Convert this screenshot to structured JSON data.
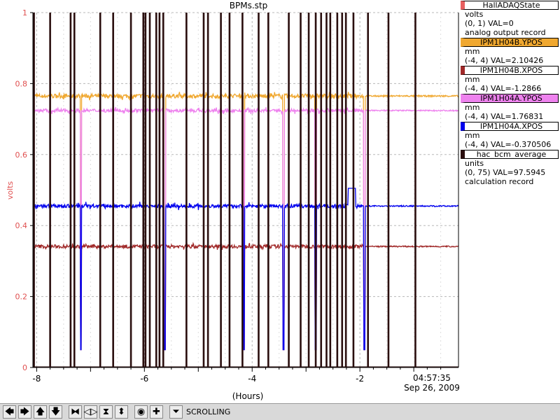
{
  "chart_data": {
    "type": "line",
    "title": "BPMs.stp",
    "xlabel": "(Hours)",
    "ylabel": "volts",
    "xlim": [
      -8.07,
      -0.17
    ],
    "ylim": [
      0,
      1
    ],
    "x_ticks": [
      -8,
      -6,
      -4,
      -2
    ],
    "x_tick_labels": [
      "-8",
      "-6",
      "-4",
      "-2"
    ],
    "y_ticks": [
      0,
      0.2,
      0.4,
      0.6,
      0.8,
      1
    ],
    "y_tick_labels": [
      "0",
      "0.2",
      "0.4",
      "0.6",
      "0.8",
      "1"
    ],
    "end_time": "04:57:35",
    "end_date": "Sep 26, 2009",
    "grid": true,
    "legend_position": "right",
    "series": [
      {
        "name": "HallADAQState",
        "color": "#e86060",
        "level": 0.0,
        "noise": 0.0
      },
      {
        "name": "IPM1H04B.YPOS",
        "color": "#f0a830",
        "level": 0.765,
        "noise": 0.006,
        "spike": 0.012
      },
      {
        "name": "IPM1H04B.XPOS",
        "color": "#a02828",
        "level": 0.341,
        "noise": 0.005,
        "spike": 0.01
      },
      {
        "name": "IPM1H04A.YPOS",
        "color": "#ee82ee",
        "level": 0.724,
        "noise": 0.005,
        "spike": 0.01
      },
      {
        "name": "IPM1H04A.XPOS",
        "color": "#0000ee",
        "level": 0.455,
        "noise": 0.005,
        "spike": 0.012
      },
      {
        "name": "hac_bcm_average",
        "color": "#2a0e0e",
        "level": 0.0
      }
    ],
    "beam_trips_hours": [
      -8.05,
      -7.75,
      -7.37,
      -7.3,
      -6.82,
      -6.58,
      -6.25,
      -6.02,
      -5.98,
      -5.9,
      -5.78,
      -5.72,
      -5.65,
      -5.22,
      -4.9,
      -4.82,
      -4.58,
      -4.42,
      -4.18,
      -3.88,
      -3.7,
      -3.32,
      -3.1,
      -2.95,
      -2.82,
      -2.72,
      -2.62,
      -2.55,
      -2.42,
      -2.33,
      -2.26,
      -2.12,
      -1.85,
      -1.47,
      -0.97
    ],
    "dip_hours": [
      -7.18,
      -5.62,
      -4.15,
      -3.42,
      -2.82,
      -1.92
    ],
    "xpos_bump": {
      "start": -2.22,
      "end": -2.08,
      "value": 0.505
    }
  },
  "legend": [
    {
      "name": "HallADAQState",
      "color": "#e86060",
      "lines": [
        "volts",
        "(0, 1) VAL=0",
        "analog output record"
      ]
    },
    {
      "name": "IPM1H04B.YPOS",
      "color": "#f0a830",
      "lines": [
        "mm",
        "(-4, 4) VAL=2.10426"
      ]
    },
    {
      "name": "IPM1H04B.XPOS",
      "color": "#a02828",
      "lines": [
        "mm",
        "(-4, 4) VAL=-1.2866"
      ]
    },
    {
      "name": "IPM1H04A.YPOS",
      "color": "#ee82ee",
      "lines": [
        "mm",
        "(-4, 4) VAL=1.76831"
      ]
    },
    {
      "name": "IPM1H04A.XPOS",
      "color": "#0000ee",
      "lines": [
        "mm",
        "(-4, 4) VAL=-0.370506"
      ]
    },
    {
      "name": "hac_bcm_average",
      "color": "#2a0e0e",
      "lines": [
        "units",
        "(0, 75) VAL=97.5945",
        "calculation record"
      ]
    }
  ],
  "toolbar": {
    "status": "SCROLLING",
    "buttons": [
      {
        "name": "scroll-left-button",
        "glyph": "🡄"
      },
      {
        "name": "scroll-right-button",
        "glyph": "🡆"
      },
      {
        "name": "scroll-up-button",
        "glyph": "🡅"
      },
      {
        "name": "scroll-down-button",
        "glyph": "🡇"
      },
      {
        "name": "zoom-in-horizontal-button",
        "glyph": "⧓"
      },
      {
        "name": "zoom-out-horizontal-button",
        "glyph": "◁▷"
      },
      {
        "name": "zoom-in-vertical-button",
        "glyph": "⧗"
      },
      {
        "name": "zoom-out-vertical-button",
        "glyph": "⬍"
      },
      {
        "name": "cursor-button",
        "glyph": "◉"
      },
      {
        "name": "add-pv-button",
        "glyph": "✚"
      },
      {
        "name": "scrolling-toggle-button",
        "glyph": "⏷"
      }
    ]
  }
}
